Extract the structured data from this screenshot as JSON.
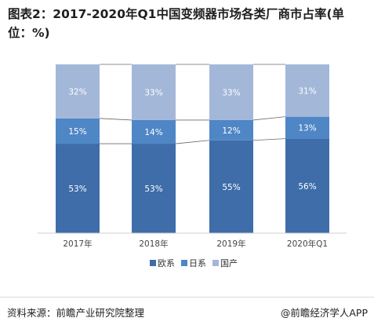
{
  "title": "图表2：2017-2020年Q1中国变频器市场各类厂商市占率(单位：%)",
  "source": "资料来源：前瞻产业研究院整理",
  "credit": "@前瞻经济学人APP",
  "colors": {
    "欧系": "#3e6da9",
    "日系": "#4f86c6",
    "国产": "#a3b7d8",
    "connector": "#6b6b6b",
    "label": "#ffffff",
    "axis_text": "#444444"
  },
  "chart_data": {
    "type": "bar",
    "stacked": true,
    "normalized": true,
    "categories": [
      "2017年",
      "2018年",
      "2019年",
      "2020年Q1"
    ],
    "series": [
      {
        "name": "欧系",
        "values": [
          53,
          53,
          55,
          56
        ],
        "labels": [
          "53%",
          "53%",
          "55%",
          "56%"
        ]
      },
      {
        "name": "日系",
        "values": [
          15,
          14,
          12,
          13
        ],
        "labels": [
          "15%",
          "14%",
          "12%",
          "13%"
        ]
      },
      {
        "name": "国产",
        "values": [
          32,
          33,
          33,
          31
        ],
        "labels": [
          "32%",
          "33%",
          "33%",
          "31%"
        ]
      }
    ],
    "ylim": [
      0,
      100
    ],
    "legend_position": "bottom",
    "series_lines": true,
    "grid": false
  }
}
